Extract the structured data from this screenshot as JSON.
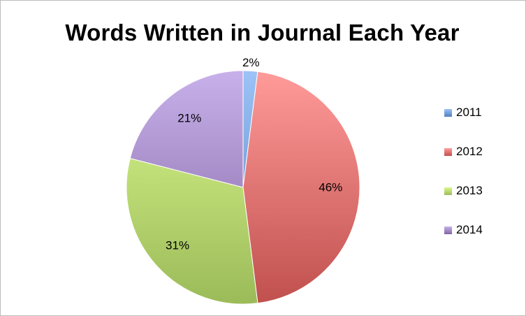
{
  "chart_data": {
    "type": "pie",
    "title": "Words Written in Journal Each Year",
    "categories": [
      "2011",
      "2012",
      "2013",
      "2014"
    ],
    "values": [
      2,
      46,
      31,
      21
    ],
    "value_labels": [
      "2%",
      "46%",
      "31%",
      "21%"
    ],
    "colors": [
      "#4f81bd",
      "#c0504d",
      "#9bbb59",
      "#8064a2"
    ],
    "light_colors": [
      "#9dc3f7",
      "#ff9b9a",
      "#dcf98f",
      "#c8b1ea"
    ],
    "legend_position": "right",
    "start_angle": "top, clockwise"
  }
}
